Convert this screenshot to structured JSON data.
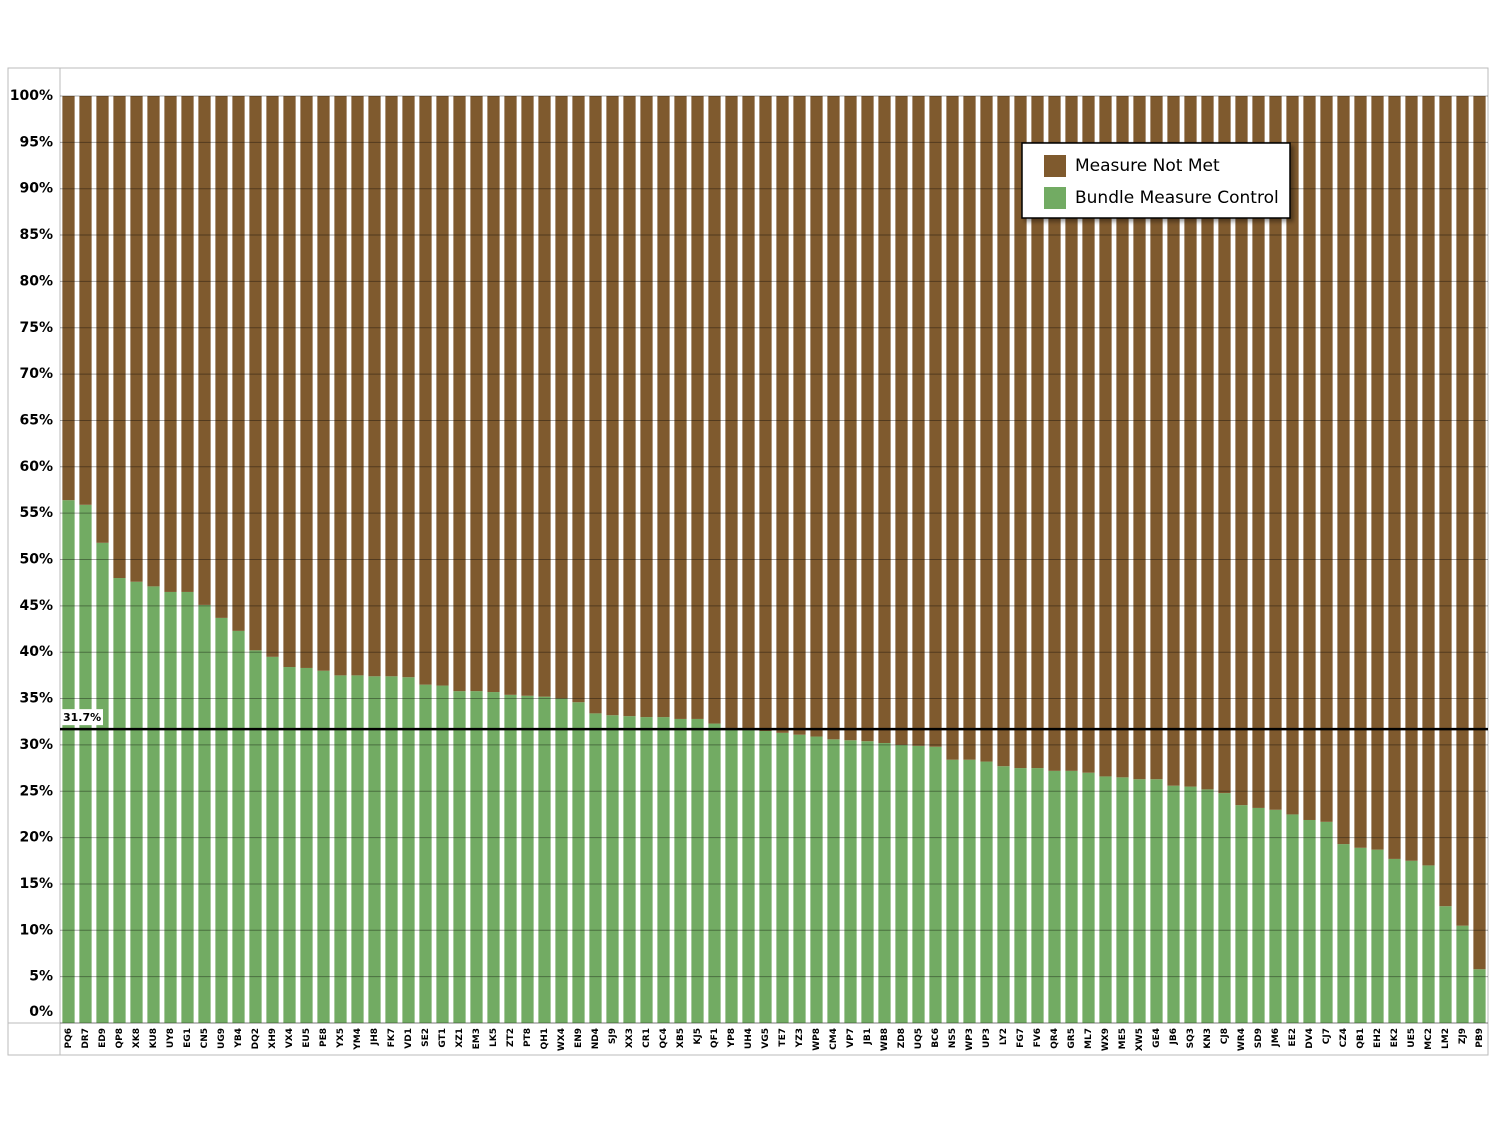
{
  "chart_data": {
    "type": "stacked-bar",
    "categories": [
      "PQ6",
      "DR7",
      "ED9",
      "QP8",
      "XK8",
      "KU8",
      "UY8",
      "EG1",
      "CN5",
      "UG9",
      "YB4",
      "DQ2",
      "XH9",
      "VX4",
      "EU5",
      "PE8",
      "YX5",
      "YM4",
      "JH8",
      "FK7",
      "VD1",
      "SE2",
      "GT1",
      "XZ1",
      "EM3",
      "LK5",
      "ZT2",
      "PT8",
      "QH1",
      "WX4",
      "EN9",
      "ND4",
      "SJ9",
      "XX3",
      "CR1",
      "QC4",
      "XB5",
      "KJ5",
      "QF1",
      "YP8",
      "UH4",
      "VG5",
      "TE7",
      "YZ3",
      "WP8",
      "CM4",
      "VP7",
      "JB1",
      "WB8",
      "ZD8",
      "UQ5",
      "BC6",
      "NS5",
      "WP3",
      "UP3",
      "LY2",
      "FG7",
      "FV6",
      "QR4",
      "GR5",
      "ML7",
      "WX9",
      "ME5",
      "XW5",
      "GE4",
      "JB6",
      "SQ3",
      "KN3",
      "CJ8",
      "WR4",
      "SD9",
      "JM6",
      "EE2",
      "DV4",
      "CJ7",
      "CZ4",
      "QB1",
      "EH2",
      "EK2",
      "UE5",
      "MC2",
      "LM2",
      "ZJ9",
      "PB9"
    ],
    "series": [
      {
        "name": "Bundle Measure Control",
        "color": "#72ab63",
        "values": [
          56.4,
          55.9,
          51.8,
          48.0,
          47.6,
          47.1,
          46.5,
          46.5,
          45.1,
          43.7,
          42.3,
          40.2,
          39.5,
          38.4,
          38.3,
          38.0,
          37.5,
          37.5,
          37.4,
          37.4,
          37.3,
          36.5,
          36.4,
          35.8,
          35.8,
          35.7,
          35.4,
          35.3,
          35.2,
          35.0,
          34.6,
          33.4,
          33.2,
          33.1,
          33.0,
          33.0,
          32.8,
          32.8,
          32.3,
          31.7,
          31.6,
          31.5,
          31.3,
          31.1,
          30.9,
          30.6,
          30.5,
          30.4,
          30.2,
          30.0,
          29.9,
          29.8,
          28.4,
          28.4,
          28.2,
          27.7,
          27.5,
          27.5,
          27.2,
          27.2,
          27.0,
          26.6,
          26.5,
          26.3,
          26.3,
          25.6,
          25.5,
          25.2,
          24.8,
          23.5,
          23.2,
          23.0,
          22.5,
          21.9,
          21.7,
          19.3,
          18.9,
          18.7,
          17.7,
          17.5,
          17.0,
          12.6,
          10.5,
          5.8
        ]
      },
      {
        "name": "Measure Not Met",
        "color": "#7f5a2e",
        "values": [
          43.6,
          44.1,
          48.2,
          52.0,
          52.4,
          52.9,
          53.5,
          53.5,
          54.9,
          56.3,
          57.7,
          59.8,
          60.5,
          61.6,
          61.7,
          62.0,
          62.5,
          62.5,
          62.6,
          62.6,
          62.7,
          63.5,
          63.6,
          64.2,
          64.2,
          64.3,
          64.6,
          64.7,
          64.8,
          65.0,
          65.4,
          66.6,
          66.8,
          66.9,
          67.0,
          67.0,
          67.2,
          67.2,
          67.7,
          68.3,
          68.4,
          68.5,
          68.7,
          68.9,
          69.1,
          69.4,
          69.5,
          69.6,
          69.8,
          70.0,
          70.1,
          70.2,
          71.6,
          71.6,
          71.8,
          72.3,
          72.5,
          72.5,
          72.8,
          72.8,
          73.0,
          73.4,
          73.5,
          73.7,
          73.7,
          74.4,
          74.5,
          74.8,
          75.2,
          76.5,
          76.8,
          77.0,
          77.5,
          78.1,
          78.3,
          80.7,
          81.1,
          81.3,
          82.3,
          82.5,
          83.0,
          87.4,
          89.5,
          94.2
        ]
      }
    ],
    "ylim": [
      0,
      100
    ],
    "yticks": [
      {
        "value": 0,
        "label": "0%"
      },
      {
        "value": 5,
        "label": "5%"
      },
      {
        "value": 10,
        "label": "10%"
      },
      {
        "value": 15,
        "label": "15%"
      },
      {
        "value": 20,
        "label": "20%"
      },
      {
        "value": 25,
        "label": "25%"
      },
      {
        "value": 30,
        "label": "30%"
      },
      {
        "value": 35,
        "label": "35%"
      },
      {
        "value": 40,
        "label": "40%"
      },
      {
        "value": 45,
        "label": "45%"
      },
      {
        "value": 50,
        "label": "50%"
      },
      {
        "value": 55,
        "label": "55%"
      },
      {
        "value": 60,
        "label": "60%"
      },
      {
        "value": 65,
        "label": "65%"
      },
      {
        "value": 70,
        "label": "70%"
      },
      {
        "value": 75,
        "label": "75%"
      },
      {
        "value": 80,
        "label": "80%"
      },
      {
        "value": 85,
        "label": "85%"
      },
      {
        "value": 90,
        "label": "90%"
      },
      {
        "value": 95,
        "label": "95%"
      },
      {
        "value": 100,
        "label": "100%"
      }
    ],
    "grid": true,
    "reference_line": {
      "value": 31.7,
      "label": "31.7%"
    },
    "legend": "top-right"
  }
}
